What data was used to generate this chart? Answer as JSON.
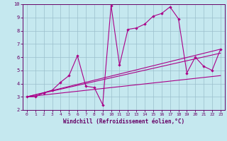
{
  "xlabel": "Windchill (Refroidissement éolien,°C)",
  "bg_color": "#c5e8ef",
  "line_color": "#aa0088",
  "border_color": "#660066",
  "xlim": [
    -0.5,
    23.5
  ],
  "ylim": [
    2,
    10
  ],
  "xticks": [
    0,
    1,
    2,
    3,
    4,
    5,
    6,
    7,
    8,
    9,
    10,
    11,
    12,
    13,
    14,
    15,
    16,
    17,
    18,
    19,
    20,
    21,
    22,
    23
  ],
  "yticks": [
    2,
    3,
    4,
    5,
    6,
    7,
    8,
    9,
    10
  ],
  "grid_color": "#9bbfcc",
  "main_x": [
    0,
    1,
    2,
    3,
    4,
    5,
    6,
    7,
    8,
    9,
    10,
    11,
    12,
    13,
    14,
    15,
    16,
    17,
    18,
    19,
    20,
    21,
    22,
    23
  ],
  "main_y": [
    3.0,
    3.0,
    3.3,
    3.5,
    4.1,
    4.6,
    6.1,
    3.8,
    3.7,
    2.4,
    9.9,
    5.4,
    8.1,
    8.2,
    8.5,
    9.1,
    9.3,
    9.8,
    8.9,
    4.8,
    6.0,
    5.3,
    5.0,
    6.6
  ],
  "trend1_x": [
    0,
    23
  ],
  "trend1_y": [
    3.0,
    6.6
  ],
  "trend2_x": [
    0,
    23
  ],
  "trend2_y": [
    3.0,
    6.3
  ],
  "trend3_x": [
    0,
    23
  ],
  "trend3_y": [
    3.0,
    4.6
  ]
}
